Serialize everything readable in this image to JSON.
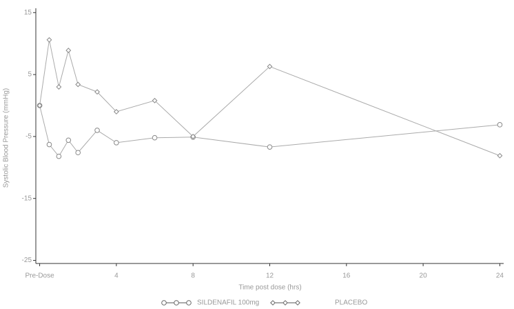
{
  "chart_data": {
    "type": "line",
    "x_label": "Time post dose (hrs)",
    "y_label": "Systolic Blood Pressure (mmHg)",
    "x": [
      0,
      0.5,
      1,
      1.5,
      2,
      3,
      4,
      6,
      8,
      12,
      24
    ],
    "series": [
      {
        "name": "SILDENAFIL 100mg",
        "color": "#aaaaaa",
        "marker": "circle",
        "values": [
          0,
          -6.3,
          -8.2,
          -5.6,
          -7.6,
          -4.0,
          -6.0,
          -5.2,
          -5.1,
          -6.7,
          -3.1
        ]
      },
      {
        "name": "PLACEBO",
        "color": "#aaaaaa",
        "marker": "diamond",
        "values": [
          0,
          10.6,
          3.0,
          8.9,
          3.4,
          2.2,
          -1.0,
          0.8,
          -5.0,
          6.3,
          -8.1
        ]
      }
    ],
    "xlim": [
      -0.2,
      24.2
    ],
    "ylim": [
      -25.5,
      15.7
    ],
    "xticks": [
      {
        "value": 0,
        "label": "Pre-Dose"
      },
      4,
      8,
      12,
      16,
      20,
      24
    ],
    "yticks": [
      15,
      5,
      -5,
      -15,
      -25
    ],
    "legend": "bottom"
  }
}
